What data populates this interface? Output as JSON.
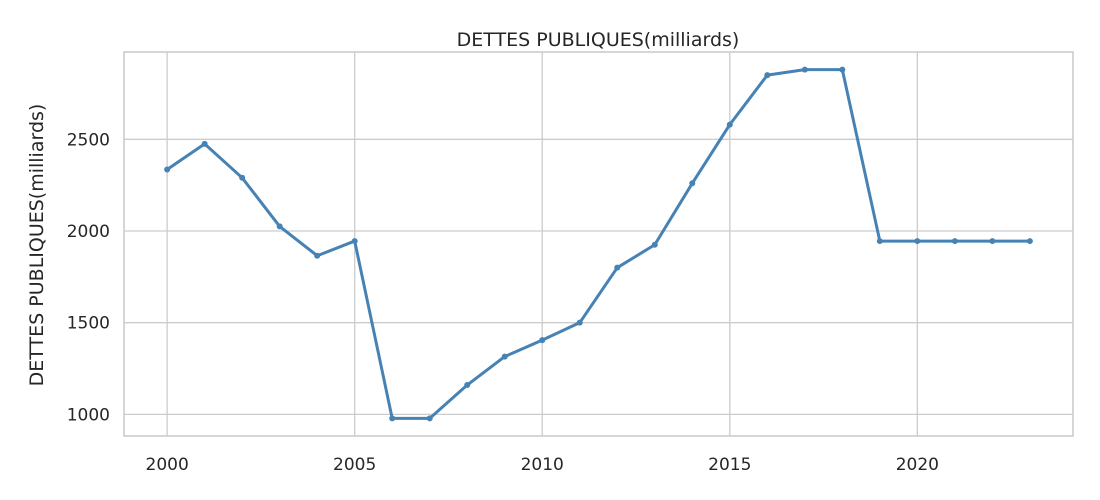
{
  "chart_data": {
    "type": "line",
    "title": "DETTES PUBLIQUES(milliards)",
    "xlabel": "",
    "ylabel": "DETTES PUBLIQUES(milliards)",
    "x": [
      2000,
      2001,
      2002,
      2003,
      2004,
      2005,
      2006,
      2007,
      2008,
      2009,
      2010,
      2011,
      2012,
      2013,
      2014,
      2015,
      2016,
      2017,
      2018,
      2019,
      2020,
      2021,
      2022,
      2023
    ],
    "series": [
      {
        "values": [
          2335,
          2475,
          2290,
          2025,
          1865,
          1945,
          978,
          978,
          1160,
          1315,
          1405,
          1500,
          1800,
          1925,
          2260,
          2580,
          2850,
          2880,
          2880,
          1945,
          1945,
          1945,
          1945,
          1945
        ],
        "color": "#4682b4"
      }
    ],
    "xticks": [
      2000,
      2005,
      2010,
      2015,
      2020
    ],
    "yticks": [
      1000,
      1500,
      2000,
      2500
    ],
    "xlim": [
      1998.85,
      2024.15
    ],
    "ylim": [
      882,
      2976
    ],
    "grid": true,
    "legend": "none"
  }
}
